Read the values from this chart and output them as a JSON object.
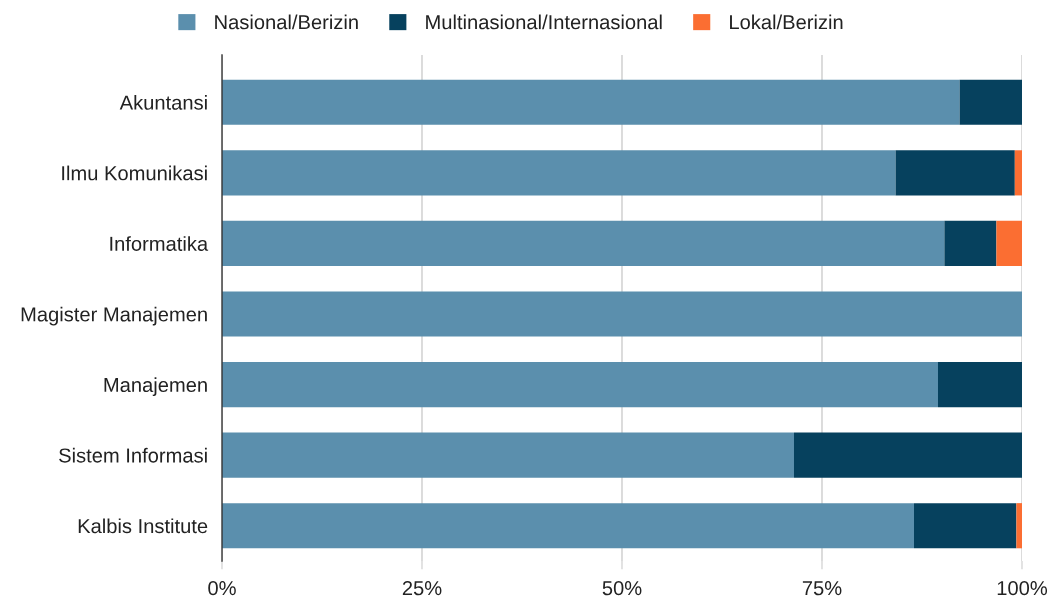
{
  "chart_data": {
    "type": "bar",
    "orientation": "horizontal",
    "stacked": true,
    "categories": [
      "Akuntansi",
      "Ilmu Komunikasi",
      "Informatika",
      "Magister Manajemen",
      "Manajemen",
      "Sistem Informasi",
      "Kalbis Institute"
    ],
    "series": [
      {
        "name": "Nasional/Berizin",
        "color": "#5b8fad",
        "values": [
          92.2,
          84.2,
          90.3,
          100,
          89.5,
          71.5,
          86.5
        ]
      },
      {
        "name": "Multinasional/Internasional",
        "color": "#06415e",
        "values": [
          7.8,
          14.9,
          6.5,
          0,
          10.5,
          28.5,
          12.8
        ]
      },
      {
        "name": "Lokal/Berizin",
        "color": "#fb6e32",
        "values": [
          0,
          0.9,
          3.2,
          0,
          0,
          0,
          0.7
        ]
      }
    ],
    "xlim": [
      0,
      100
    ],
    "xticks": [
      {
        "value": 0,
        "label": "0%"
      },
      {
        "value": 25,
        "label": "25%"
      },
      {
        "value": 50,
        "label": "50%"
      },
      {
        "value": 75,
        "label": "75%"
      },
      {
        "value": 100,
        "label": "100%"
      }
    ],
    "grid": "x",
    "legend": "top"
  }
}
